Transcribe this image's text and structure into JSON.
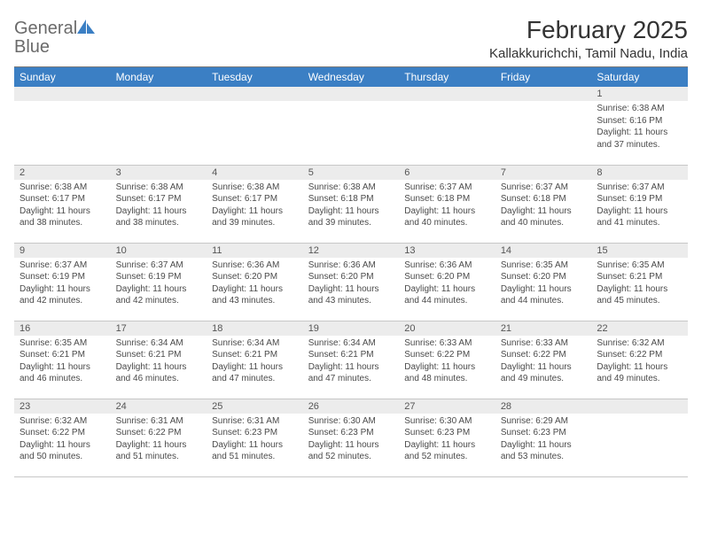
{
  "brand": {
    "name_part1": "General",
    "name_part2": "Blue",
    "icon_color": "#3b7fc4",
    "text_color_gray": "#6a6a6a"
  },
  "header": {
    "month_title": "February 2025",
    "location": "Kallakkurichchi, Tamil Nadu, India"
  },
  "style": {
    "header_bg": "#3b7fc4",
    "header_fg": "#ffffff",
    "daynum_bg": "#ececec",
    "border_color": "#c7c7c7",
    "top_border": "#7a7a7a",
    "body_font_size": 10,
    "title_font_size": 28,
    "location_font_size": 15
  },
  "weekdays": [
    "Sunday",
    "Monday",
    "Tuesday",
    "Wednesday",
    "Thursday",
    "Friday",
    "Saturday"
  ],
  "weeks": [
    [
      {
        "day": "",
        "sunrise": "",
        "sunset": "",
        "daylight": ""
      },
      {
        "day": "",
        "sunrise": "",
        "sunset": "",
        "daylight": ""
      },
      {
        "day": "",
        "sunrise": "",
        "sunset": "",
        "daylight": ""
      },
      {
        "day": "",
        "sunrise": "",
        "sunset": "",
        "daylight": ""
      },
      {
        "day": "",
        "sunrise": "",
        "sunset": "",
        "daylight": ""
      },
      {
        "day": "",
        "sunrise": "",
        "sunset": "",
        "daylight": ""
      },
      {
        "day": "1",
        "sunrise": "Sunrise: 6:38 AM",
        "sunset": "Sunset: 6:16 PM",
        "daylight": "Daylight: 11 hours and 37 minutes."
      }
    ],
    [
      {
        "day": "2",
        "sunrise": "Sunrise: 6:38 AM",
        "sunset": "Sunset: 6:17 PM",
        "daylight": "Daylight: 11 hours and 38 minutes."
      },
      {
        "day": "3",
        "sunrise": "Sunrise: 6:38 AM",
        "sunset": "Sunset: 6:17 PM",
        "daylight": "Daylight: 11 hours and 38 minutes."
      },
      {
        "day": "4",
        "sunrise": "Sunrise: 6:38 AM",
        "sunset": "Sunset: 6:17 PM",
        "daylight": "Daylight: 11 hours and 39 minutes."
      },
      {
        "day": "5",
        "sunrise": "Sunrise: 6:38 AM",
        "sunset": "Sunset: 6:18 PM",
        "daylight": "Daylight: 11 hours and 39 minutes."
      },
      {
        "day": "6",
        "sunrise": "Sunrise: 6:37 AM",
        "sunset": "Sunset: 6:18 PM",
        "daylight": "Daylight: 11 hours and 40 minutes."
      },
      {
        "day": "7",
        "sunrise": "Sunrise: 6:37 AM",
        "sunset": "Sunset: 6:18 PM",
        "daylight": "Daylight: 11 hours and 40 minutes."
      },
      {
        "day": "8",
        "sunrise": "Sunrise: 6:37 AM",
        "sunset": "Sunset: 6:19 PM",
        "daylight": "Daylight: 11 hours and 41 minutes."
      }
    ],
    [
      {
        "day": "9",
        "sunrise": "Sunrise: 6:37 AM",
        "sunset": "Sunset: 6:19 PM",
        "daylight": "Daylight: 11 hours and 42 minutes."
      },
      {
        "day": "10",
        "sunrise": "Sunrise: 6:37 AM",
        "sunset": "Sunset: 6:19 PM",
        "daylight": "Daylight: 11 hours and 42 minutes."
      },
      {
        "day": "11",
        "sunrise": "Sunrise: 6:36 AM",
        "sunset": "Sunset: 6:20 PM",
        "daylight": "Daylight: 11 hours and 43 minutes."
      },
      {
        "day": "12",
        "sunrise": "Sunrise: 6:36 AM",
        "sunset": "Sunset: 6:20 PM",
        "daylight": "Daylight: 11 hours and 43 minutes."
      },
      {
        "day": "13",
        "sunrise": "Sunrise: 6:36 AM",
        "sunset": "Sunset: 6:20 PM",
        "daylight": "Daylight: 11 hours and 44 minutes."
      },
      {
        "day": "14",
        "sunrise": "Sunrise: 6:35 AM",
        "sunset": "Sunset: 6:20 PM",
        "daylight": "Daylight: 11 hours and 44 minutes."
      },
      {
        "day": "15",
        "sunrise": "Sunrise: 6:35 AM",
        "sunset": "Sunset: 6:21 PM",
        "daylight": "Daylight: 11 hours and 45 minutes."
      }
    ],
    [
      {
        "day": "16",
        "sunrise": "Sunrise: 6:35 AM",
        "sunset": "Sunset: 6:21 PM",
        "daylight": "Daylight: 11 hours and 46 minutes."
      },
      {
        "day": "17",
        "sunrise": "Sunrise: 6:34 AM",
        "sunset": "Sunset: 6:21 PM",
        "daylight": "Daylight: 11 hours and 46 minutes."
      },
      {
        "day": "18",
        "sunrise": "Sunrise: 6:34 AM",
        "sunset": "Sunset: 6:21 PM",
        "daylight": "Daylight: 11 hours and 47 minutes."
      },
      {
        "day": "19",
        "sunrise": "Sunrise: 6:34 AM",
        "sunset": "Sunset: 6:21 PM",
        "daylight": "Daylight: 11 hours and 47 minutes."
      },
      {
        "day": "20",
        "sunrise": "Sunrise: 6:33 AM",
        "sunset": "Sunset: 6:22 PM",
        "daylight": "Daylight: 11 hours and 48 minutes."
      },
      {
        "day": "21",
        "sunrise": "Sunrise: 6:33 AM",
        "sunset": "Sunset: 6:22 PM",
        "daylight": "Daylight: 11 hours and 49 minutes."
      },
      {
        "day": "22",
        "sunrise": "Sunrise: 6:32 AM",
        "sunset": "Sunset: 6:22 PM",
        "daylight": "Daylight: 11 hours and 49 minutes."
      }
    ],
    [
      {
        "day": "23",
        "sunrise": "Sunrise: 6:32 AM",
        "sunset": "Sunset: 6:22 PM",
        "daylight": "Daylight: 11 hours and 50 minutes."
      },
      {
        "day": "24",
        "sunrise": "Sunrise: 6:31 AM",
        "sunset": "Sunset: 6:22 PM",
        "daylight": "Daylight: 11 hours and 51 minutes."
      },
      {
        "day": "25",
        "sunrise": "Sunrise: 6:31 AM",
        "sunset": "Sunset: 6:23 PM",
        "daylight": "Daylight: 11 hours and 51 minutes."
      },
      {
        "day": "26",
        "sunrise": "Sunrise: 6:30 AM",
        "sunset": "Sunset: 6:23 PM",
        "daylight": "Daylight: 11 hours and 52 minutes."
      },
      {
        "day": "27",
        "sunrise": "Sunrise: 6:30 AM",
        "sunset": "Sunset: 6:23 PM",
        "daylight": "Daylight: 11 hours and 52 minutes."
      },
      {
        "day": "28",
        "sunrise": "Sunrise: 6:29 AM",
        "sunset": "Sunset: 6:23 PM",
        "daylight": "Daylight: 11 hours and 53 minutes."
      },
      {
        "day": "",
        "sunrise": "",
        "sunset": "",
        "daylight": ""
      }
    ]
  ]
}
